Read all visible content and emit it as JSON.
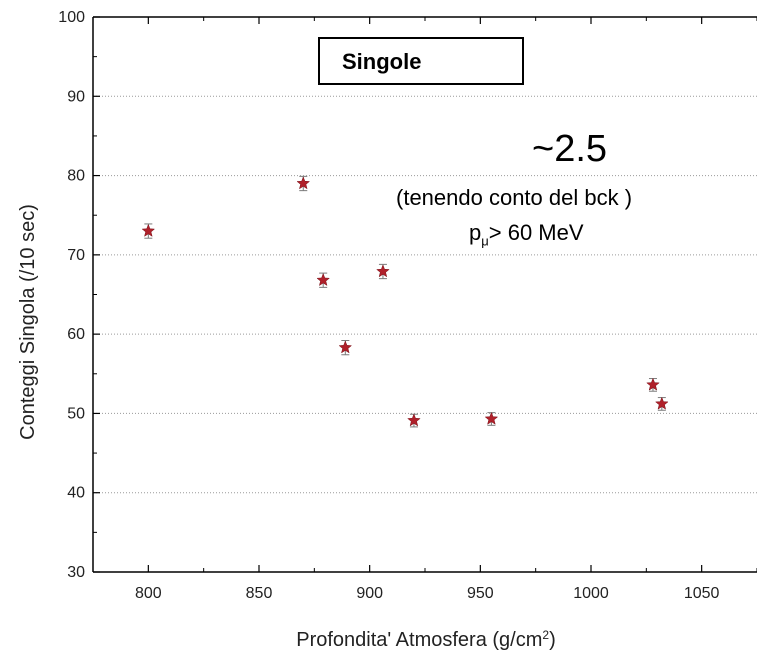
{
  "chart_data": {
    "type": "scatter",
    "title": "",
    "xlabel_main": "Profondita' Atmosfera (g/cm",
    "xlabel_sup": "2",
    "xlabel_end": ")",
    "ylabel": "Conteggi Singola (/10 sec)",
    "xlim": [
      775,
      1075
    ],
    "ylim": [
      30,
      100
    ],
    "xticks": [
      800,
      850,
      900,
      950,
      1000,
      1050
    ],
    "yticks": [
      30,
      40,
      50,
      60,
      70,
      80,
      90,
      100
    ],
    "grid": "horizontal dotted",
    "marker": "star",
    "marker_color": "#b0202a",
    "points": [
      {
        "x": 800,
        "y": 73.0,
        "err": 0.9
      },
      {
        "x": 870,
        "y": 79.0,
        "err": 0.9
      },
      {
        "x": 879,
        "y": 66.8,
        "err": 0.9
      },
      {
        "x": 889,
        "y": 58.3,
        "err": 0.9
      },
      {
        "x": 906,
        "y": 67.9,
        "err": 0.9
      },
      {
        "x": 920,
        "y": 49.1,
        "err": 0.8
      },
      {
        "x": 955,
        "y": 49.3,
        "err": 0.8
      },
      {
        "x": 1028,
        "y": 53.6,
        "err": 0.8
      },
      {
        "x": 1032,
        "y": 51.2,
        "err": 0.8
      }
    ],
    "legend": "Singole",
    "annotations": {
      "approx": "~2.5",
      "note": "(tenendo conto del bck )",
      "momentum_base": "p",
      "momentum_sub": "μ",
      "momentum_rest": "> 60 MeV"
    }
  }
}
